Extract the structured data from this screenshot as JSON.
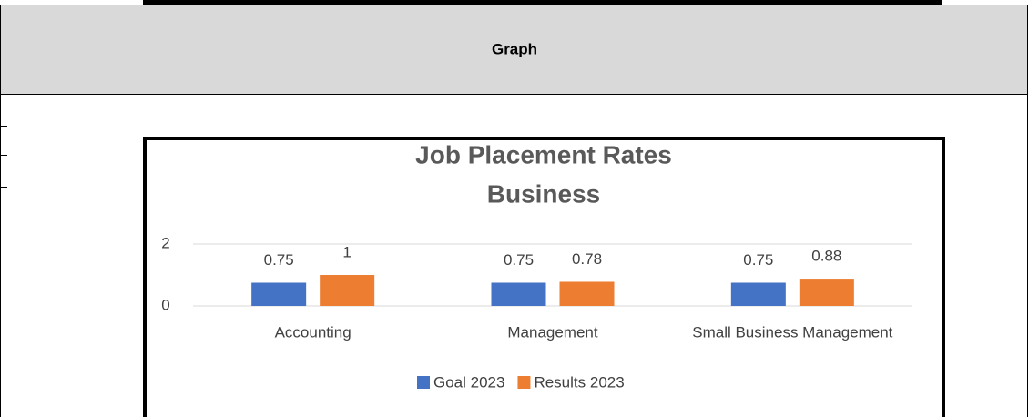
{
  "header": {
    "title": "Graph"
  },
  "chart_data": {
    "type": "bar",
    "title": "Job Placement Rates",
    "subtitle": "Business",
    "categories": [
      "Accounting",
      "Management",
      "Small Business Management"
    ],
    "series": [
      {
        "name": "Goal 2023",
        "color": "#4472c4",
        "values": [
          0.75,
          0.75,
          0.75
        ]
      },
      {
        "name": "Results 2023",
        "color": "#ed7d31",
        "values": [
          1,
          0.78,
          0.88
        ]
      }
    ],
    "ylim": [
      0,
      2
    ],
    "yticks": [
      0,
      2
    ],
    "grid": true,
    "legend": "bottom"
  }
}
